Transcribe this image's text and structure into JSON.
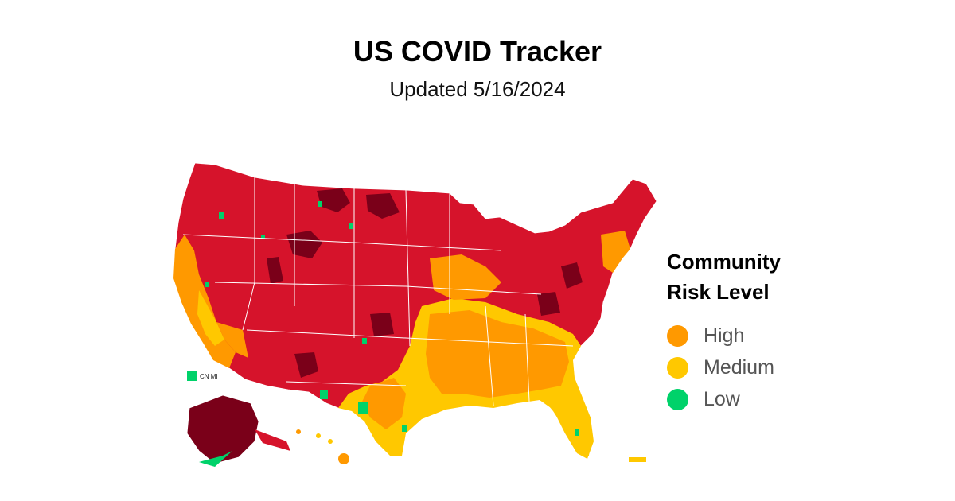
{
  "header": {
    "title": "US COVID Tracker",
    "subtitle": "Updated 5/16/2024"
  },
  "legend": {
    "title_line1": "Community",
    "title_line2": "Risk Level",
    "items": [
      {
        "label": "High",
        "color": "#ff9900"
      },
      {
        "label": "Medium",
        "color": "#ffc800"
      },
      {
        "label": "Low",
        "color": "#00d26a"
      }
    ]
  },
  "map": {
    "colors": {
      "very_high": "#7a0019",
      "high_red": "#d6132b",
      "high": "#ff9900",
      "medium": "#ffc800",
      "low": "#00d26a"
    },
    "territory_label": "CN MI"
  }
}
